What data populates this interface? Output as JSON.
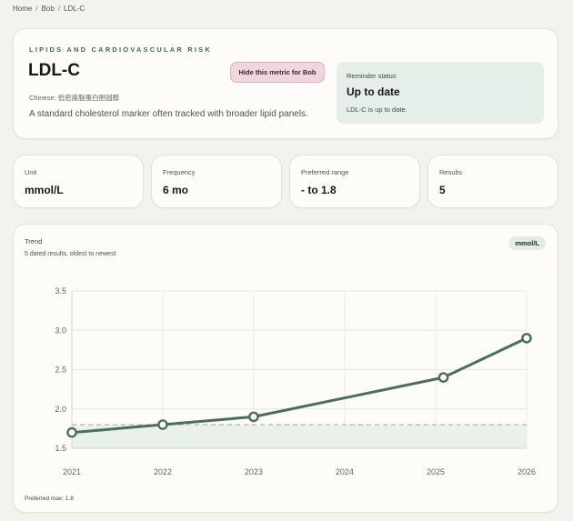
{
  "breadcrumb": {
    "home": "Home",
    "person": "Bob",
    "current": "LDL-C",
    "separator": "/"
  },
  "hero": {
    "eyebrow": "LIPIDS AND CARDIOVASCULAR RISK",
    "title": "LDL-C",
    "chinese": "Chinese: 低密度脂蛋白胆固醇",
    "description": "A standard cholesterol marker often tracked with broader lipid panels.",
    "hide_button": "Hide this metric for Bob"
  },
  "reminder": {
    "label": "Reminder status",
    "value": "Up to date",
    "note": "LDL-C is up to date."
  },
  "stats": [
    {
      "label": "Unit",
      "value": "mmol/L"
    },
    {
      "label": "Frequency",
      "value": "6 mo"
    },
    {
      "label": "Preferred range",
      "value": "- to 1.8"
    },
    {
      "label": "Results",
      "value": "5"
    }
  ],
  "trend": {
    "title": "Trend",
    "subtitle": "5 dated results, oldest to newest",
    "unit_pill": "mmol/L",
    "footnote": "Preferred max: 1.8"
  },
  "colors": {
    "accent": "#4a6e5a",
    "pink_button": "#efd6df",
    "reminder_bg": "#e6eeea"
  },
  "chart_data": {
    "type": "line",
    "x": [
      "2021-01-01",
      "2022-01-01",
      "2023-01-01",
      "2025-02-01",
      "2026-01-01"
    ],
    "series": [
      {
        "values": [
          1.7,
          1.8,
          1.9,
          2.4,
          2.9
        ]
      }
    ],
    "x_ticks": [
      "2021",
      "2022",
      "2023",
      "2024",
      "2025",
      "2026"
    ],
    "y_ticks": [
      "1.5",
      "2.0",
      "2.5",
      "3.0",
      "3.5"
    ],
    "ylim": [
      1.5,
      3.5
    ],
    "xlim": [
      "2021-01-01",
      "2026-01-01"
    ],
    "preferred_max": 1.8,
    "grid": true
  }
}
